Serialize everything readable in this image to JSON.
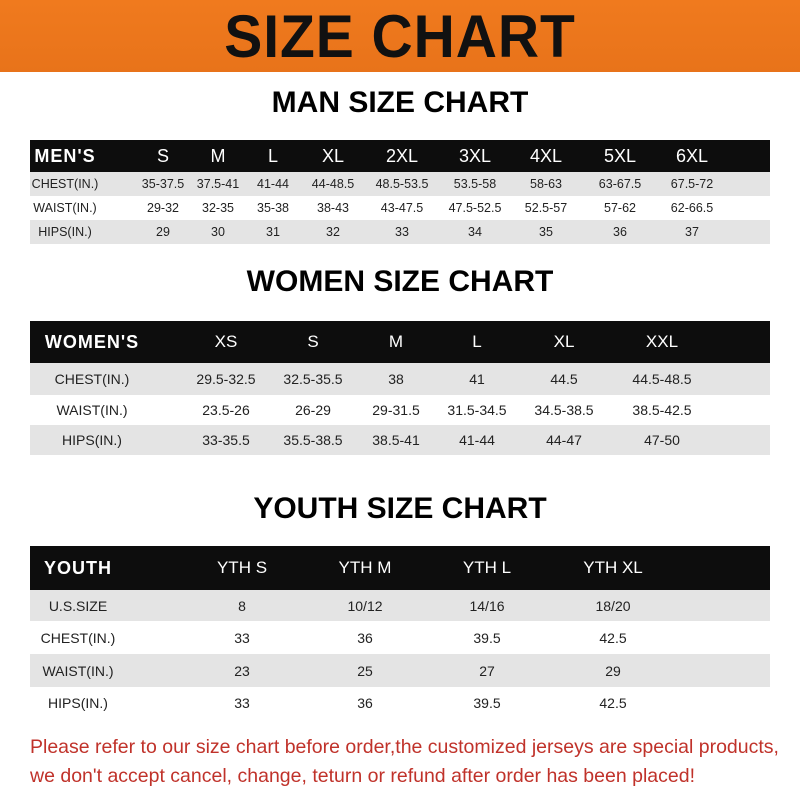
{
  "banner_title": "SIZE CHART",
  "colors": {
    "banner": "#f07a1e",
    "header_row": "#0d0d0d",
    "note": "#c0322a",
    "stripe": "#e4e4e4"
  },
  "men": {
    "title": "MAN SIZE CHART",
    "header": [
      "MEN'S",
      "S",
      "M",
      "L",
      "XL",
      "2XL",
      "3XL",
      "4XL",
      "5XL",
      "6XL"
    ],
    "rows": [
      [
        "CHEST(IN.)",
        "35-37.5",
        "37.5-41",
        "41-44",
        "44-48.5",
        "48.5-53.5",
        "53.5-58",
        "58-63",
        "63-67.5",
        "67.5-72"
      ],
      [
        "WAIST(IN.)",
        "29-32",
        "32-35",
        "35-38",
        "38-43",
        "43-47.5",
        "47.5-52.5",
        "52.5-57",
        "57-62",
        "62-66.5"
      ],
      [
        "HIPS(IN.)",
        "29",
        "30",
        "31",
        "32",
        "33",
        "34",
        "35",
        "36",
        "37"
      ]
    ]
  },
  "women": {
    "title": "WOMEN SIZE CHART",
    "header": [
      "WOMEN'S",
      "XS",
      "S",
      "M",
      "L",
      "XL",
      "XXL"
    ],
    "rows": [
      [
        "CHEST(IN.)",
        "29.5-32.5",
        "32.5-35.5",
        "38",
        "41",
        "44.5",
        "44.5-48.5"
      ],
      [
        "WAIST(IN.)",
        "23.5-26",
        "26-29",
        "29-31.5",
        "31.5-34.5",
        "34.5-38.5",
        "38.5-42.5"
      ],
      [
        "HIPS(IN.)",
        "33-35.5",
        "35.5-38.5",
        "38.5-41",
        "41-44",
        "44-47",
        "47-50"
      ]
    ]
  },
  "youth": {
    "title": "YOUTH SIZE CHART",
    "header": [
      "YOUTH",
      "YTH S",
      "YTH M",
      "YTH L",
      "YTH XL"
    ],
    "rows": [
      [
        "U.S.SIZE",
        "8",
        "10/12",
        "14/16",
        "18/20"
      ],
      [
        "CHEST(IN.)",
        "33",
        "36",
        "39.5",
        "42.5"
      ],
      [
        "WAIST(IN.)",
        "23",
        "25",
        "27",
        "29"
      ],
      [
        "HIPS(IN.)",
        "33",
        "36",
        "39.5",
        "42.5"
      ]
    ]
  },
  "note_lines": [
    "Please refer to our size chart before order,the customized jerseys are special products,",
    "we don't accept cancel, change, teturn or refund after order has been placed!"
  ]
}
